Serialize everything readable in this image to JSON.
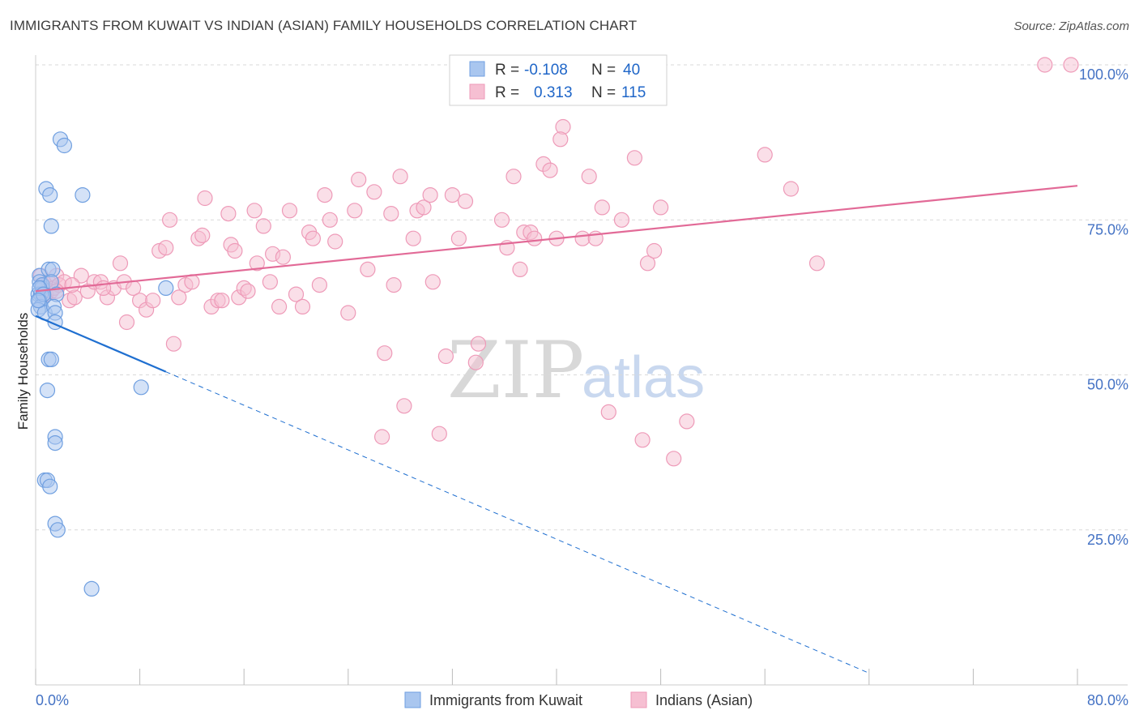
{
  "title": "IMMIGRANTS FROM KUWAIT VS INDIAN (ASIAN) FAMILY HOUSEHOLDS CORRELATION CHART",
  "source": "Source: ZipAtlas.com",
  "watermark": {
    "zip": "ZIP",
    "atlas": "atlas"
  },
  "colors": {
    "blue": "#1f6fd0",
    "blue_fill": "#a9c6ef",
    "blue_stroke": "#6f9fe0",
    "pink": "#e26a97",
    "pink_fill": "#f6bfd2",
    "pink_stroke": "#ee9ab8",
    "tick": "#4472c4",
    "grid": "#d9d9d9"
  },
  "legend": {
    "rows": [
      {
        "r_label": "R =",
        "r_value": "-0.108",
        "n_label": "N =",
        "n_value": "40"
      },
      {
        "r_label": "R =",
        "r_value": "0.313",
        "n_label": "N =",
        "n_value": "115"
      }
    ]
  },
  "chart_data": {
    "type": "scatter",
    "ylabel": "Family Households",
    "xlim": [
      0,
      80
    ],
    "ylim": [
      0,
      100
    ],
    "x_tick_labels": [
      "0.0%",
      "80.0%"
    ],
    "y_ticks": [
      25,
      50,
      75,
      100
    ],
    "y_tick_labels": [
      "25.0%",
      "50.0%",
      "75.0%",
      "100.0%"
    ],
    "grid": "horizontal dashed",
    "legend_position": "top-center and bottom",
    "series": [
      {
        "name": "Immigrants from Kuwait",
        "color": "blue",
        "R": -0.108,
        "N": 40,
        "trend": {
          "x": [
            0,
            10
          ],
          "y": [
            59.5,
            50.5
          ],
          "dash_extends_to_x": 64
        },
        "points": [
          [
            0.3,
            66
          ],
          [
            0.3,
            65
          ],
          [
            0.5,
            64
          ],
          [
            0.2,
            63
          ],
          [
            0.4,
            63
          ],
          [
            0.6,
            62.5
          ],
          [
            0.3,
            62
          ],
          [
            0.4,
            61
          ],
          [
            0.2,
            60.5
          ],
          [
            0.5,
            64.5
          ],
          [
            0.7,
            60
          ],
          [
            1,
            67
          ],
          [
            1.3,
            67
          ],
          [
            1.2,
            65
          ],
          [
            1.6,
            63
          ],
          [
            1.4,
            61
          ],
          [
            1.5,
            60
          ],
          [
            1.5,
            58.5
          ],
          [
            1,
            52.5
          ],
          [
            1.2,
            52.5
          ],
          [
            0.9,
            47.5
          ],
          [
            0.8,
            80
          ],
          [
            1.1,
            79
          ],
          [
            3.6,
            79
          ],
          [
            1.2,
            74
          ],
          [
            1.5,
            40
          ],
          [
            1.5,
            39
          ],
          [
            0.7,
            33
          ],
          [
            0.9,
            33
          ],
          [
            1.1,
            32
          ],
          [
            1.5,
            26
          ],
          [
            1.7,
            25
          ],
          [
            4.3,
            15.5
          ],
          [
            1.9,
            88
          ],
          [
            2.2,
            87
          ],
          [
            8.1,
            48
          ],
          [
            10,
            64
          ],
          [
            0.3,
            64
          ],
          [
            0.6,
            63
          ],
          [
            0.2,
            62
          ]
        ]
      },
      {
        "name": "Indians (Asian)",
        "color": "pink",
        "R": 0.313,
        "N": 115,
        "trend": {
          "x": [
            0,
            80
          ],
          "y": [
            63.5,
            80.5
          ]
        },
        "points": [
          [
            0.4,
            66
          ],
          [
            0.6,
            64.5
          ],
          [
            0.8,
            63
          ],
          [
            1,
            65
          ],
          [
            1.2,
            63.5
          ],
          [
            1.4,
            64
          ],
          [
            1.6,
            66
          ],
          [
            1.8,
            64.5
          ],
          [
            2.2,
            65
          ],
          [
            2.6,
            62
          ],
          [
            3,
            62.5
          ],
          [
            3.5,
            66
          ],
          [
            4,
            63.5
          ],
          [
            4.5,
            65
          ],
          [
            5,
            65
          ],
          [
            5.5,
            62.5
          ],
          [
            6,
            64
          ],
          [
            6.5,
            68
          ],
          [
            6.8,
            65
          ],
          [
            7,
            58.5
          ],
          [
            7.5,
            64
          ],
          [
            8,
            62
          ],
          [
            8.5,
            60.5
          ],
          [
            9,
            62
          ],
          [
            9.5,
            70
          ],
          [
            10,
            70.5
          ],
          [
            10.3,
            75
          ],
          [
            10.6,
            55
          ],
          [
            11,
            62.5
          ],
          [
            11.5,
            64.5
          ],
          [
            12,
            65
          ],
          [
            12.5,
            72
          ],
          [
            12.8,
            72.5
          ],
          [
            13,
            78.5
          ],
          [
            13.5,
            61
          ],
          [
            14,
            62
          ],
          [
            14.3,
            62
          ],
          [
            14.8,
            76
          ],
          [
            15,
            71
          ],
          [
            15.3,
            70
          ],
          [
            15.6,
            62.5
          ],
          [
            16,
            64
          ],
          [
            16.3,
            63.5
          ],
          [
            16.8,
            76.5
          ],
          [
            17,
            68
          ],
          [
            17.5,
            74
          ],
          [
            18,
            65
          ],
          [
            18.2,
            69.5
          ],
          [
            18.7,
            61
          ],
          [
            19,
            69
          ],
          [
            19.5,
            76.5
          ],
          [
            20,
            63
          ],
          [
            20.5,
            61
          ],
          [
            21,
            73
          ],
          [
            21.3,
            72
          ],
          [
            21.8,
            64.5
          ],
          [
            22.2,
            79
          ],
          [
            22.6,
            75
          ],
          [
            23,
            71.5
          ],
          [
            24,
            60
          ],
          [
            24.5,
            76.5
          ],
          [
            24.8,
            81.5
          ],
          [
            25.5,
            67
          ],
          [
            26,
            79.5
          ],
          [
            26.8,
            53.5
          ],
          [
            26.6,
            40
          ],
          [
            27.3,
            76
          ],
          [
            27.5,
            64.5
          ],
          [
            28,
            82
          ],
          [
            28.3,
            45
          ],
          [
            29,
            72
          ],
          [
            29.3,
            76.5
          ],
          [
            29.8,
            77
          ],
          [
            30.3,
            79
          ],
          [
            30.5,
            65
          ],
          [
            31,
            40.5
          ],
          [
            31.5,
            53
          ],
          [
            32,
            79
          ],
          [
            32.5,
            72
          ],
          [
            33,
            78
          ],
          [
            34,
            55
          ],
          [
            33.8,
            52
          ],
          [
            35.8,
            75
          ],
          [
            36.2,
            70.5
          ],
          [
            36.7,
            82
          ],
          [
            37.2,
            67
          ],
          [
            37.5,
            73
          ],
          [
            38,
            73
          ],
          [
            38.3,
            72
          ],
          [
            39,
            84
          ],
          [
            39.5,
            83
          ],
          [
            40,
            72
          ],
          [
            40.5,
            90
          ],
          [
            40.3,
            88
          ],
          [
            42,
            72
          ],
          [
            42.5,
            82
          ],
          [
            43,
            72
          ],
          [
            43.5,
            77
          ],
          [
            44,
            44
          ],
          [
            45,
            75
          ],
          [
            46,
            85
          ],
          [
            46.6,
            39.5
          ],
          [
            47,
            68
          ],
          [
            47.5,
            70
          ],
          [
            48,
            77
          ],
          [
            49,
            36.5
          ],
          [
            50,
            42.5
          ],
          [
            56,
            85.5
          ],
          [
            58,
            80
          ],
          [
            60,
            68
          ],
          [
            77.5,
            100
          ],
          [
            79.5,
            100
          ],
          [
            1.6,
            63.5
          ],
          [
            2.8,
            64.5
          ],
          [
            5.2,
            64
          ]
        ]
      }
    ]
  },
  "bottom_legend": [
    "Immigrants from Kuwait",
    "Indians (Asian)"
  ]
}
